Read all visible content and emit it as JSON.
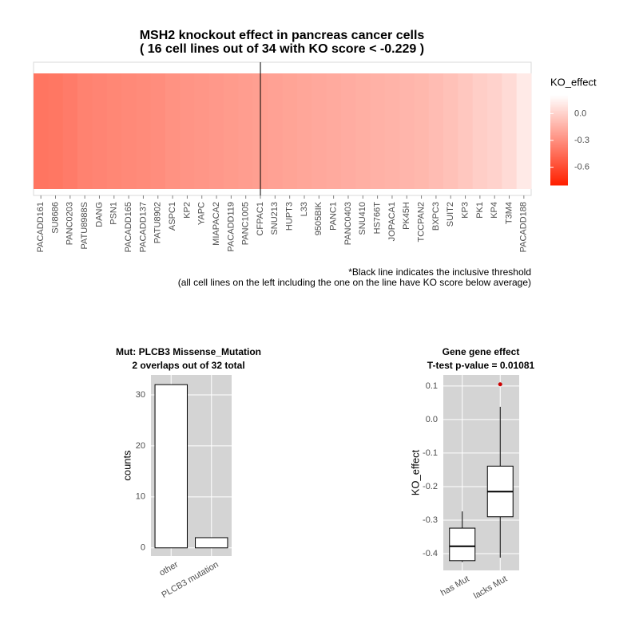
{
  "chart_data": [
    {
      "type": "heatmap",
      "title": [
        "MSH2 knockout effect in pancreas cancer cells",
        "( 16 cell lines out of  34 with KO score < -0.229 )"
      ],
      "categories": [
        "PACADD161",
        "SU8686",
        "PANC0203",
        "PATU8988S",
        "DANG",
        "PSN1",
        "PACADD165",
        "PACADD137",
        "PATU8902",
        "ASPC1",
        "KP2",
        "YAPC",
        "MIAPACA2",
        "PACADD119",
        "PANC1005",
        "CFPAC1",
        "SNU213",
        "HUPT3",
        "L33",
        "9505BIK",
        "PANC1",
        "PANC0403",
        "SNU410",
        "HS766T",
        "JOPACA1",
        "PK45H",
        "TCCPAN2",
        "BXPC3",
        "SUIT2",
        "KP3",
        "PK1",
        "KP4",
        "T3M4",
        "PACADD188"
      ],
      "values": [
        -0.42,
        -0.41,
        -0.39,
        -0.36,
        -0.35,
        -0.34,
        -0.33,
        -0.32,
        -0.31,
        -0.29,
        -0.28,
        -0.27,
        -0.26,
        -0.25,
        -0.24,
        -0.23,
        -0.22,
        -0.21,
        -0.2,
        -0.19,
        -0.18,
        -0.17,
        -0.16,
        -0.15,
        -0.14,
        -0.13,
        -0.12,
        -0.1,
        -0.08,
        -0.05,
        -0.02,
        0.0,
        0.04,
        0.105
      ],
      "threshold": -0.229,
      "colorbar": {
        "title": "KO_effect",
        "lim": [
          -0.8,
          0.2
        ],
        "colors": [
          "#ff2000",
          "#ffffff"
        ],
        "ticks": [
          {
            "value": 0,
            "label": "0.0"
          },
          -0.3,
          -0.6
        ]
      },
      "footnote": [
        "*Black line indicates the inclusive threshold",
        "(all cell lines on the left including the one on the line have KO score below average)"
      ]
    },
    {
      "type": "bar",
      "title": [
        "Mut: PLCB3 Missense_Mutation",
        "2 overlaps out of 32 total"
      ],
      "ylabel": "counts",
      "categories": [
        "other",
        "PLCB3 mutation"
      ],
      "values": [
        32,
        2
      ],
      "color": "#ffffff",
      "ylim": [
        -1.6,
        33.9
      ],
      "yticks": [
        0,
        10,
        20,
        30
      ],
      "grid": true
    },
    {
      "type": "box",
      "title": [
        "Gene gene effect",
        "T-test p-value = 0.01081"
      ],
      "ylabel": "KO_effect",
      "categories": [
        "has Mut",
        "lacks Mut"
      ],
      "boxes": [
        {
          "min": -0.425,
          "q1": -0.421,
          "median": -0.378,
          "q3": -0.324,
          "max": -0.274,
          "outliers": []
        },
        {
          "min": -0.412,
          "q1": -0.29,
          "median": -0.215,
          "q3": -0.139,
          "max": 0.038,
          "outliers": [
            0.105
          ]
        }
      ],
      "outlier_color": "#cc0000",
      "ylim": [
        -0.45,
        0.133
      ],
      "yticks": [
        0.1,
        {
          "value": 0,
          "label": "0.0"
        },
        -0.1,
        -0.2,
        -0.3,
        -0.4
      ],
      "grid": true
    }
  ]
}
